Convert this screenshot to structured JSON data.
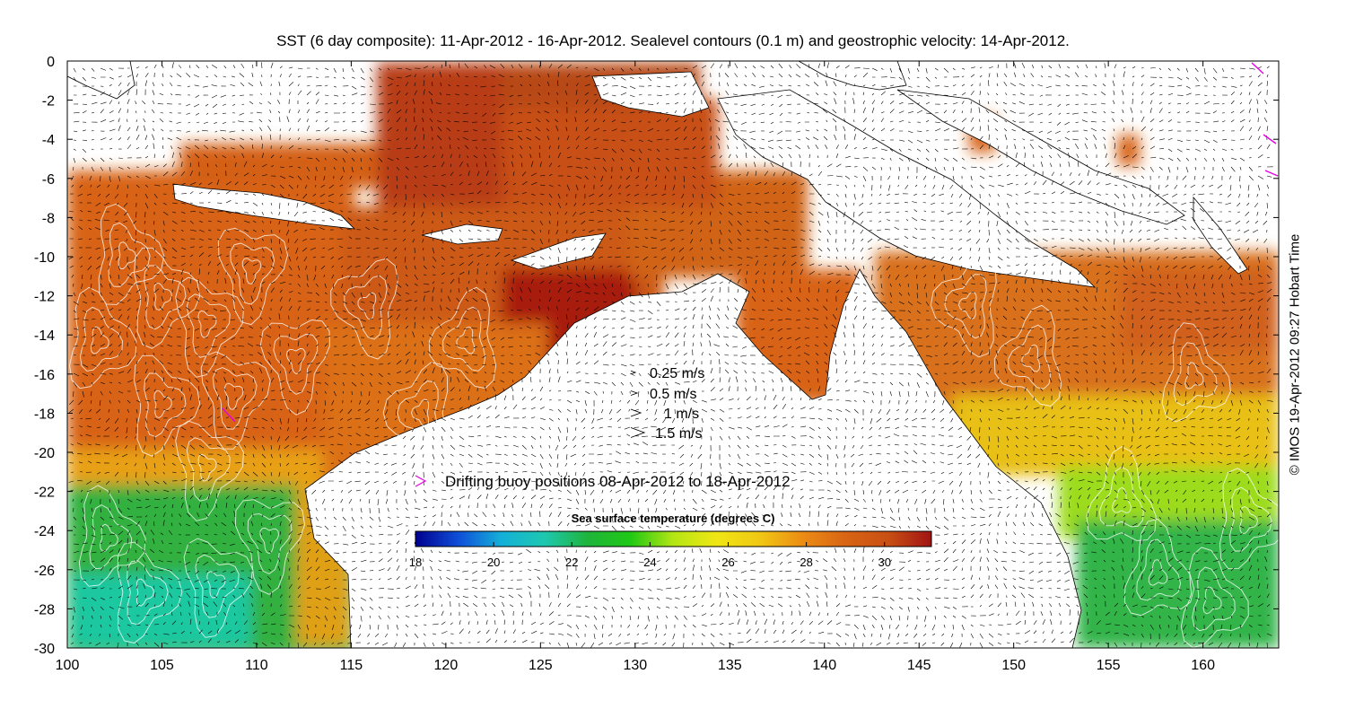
{
  "title": "SST (6 day composite): 11-Apr-2012 - 16-Apr-2012. Sealevel contours (0.1 m) and geostrophic velocity: 14-Apr-2012.",
  "credit": "© IMOS 19-Apr-2012 09:27 Hobart Time",
  "chart_data": {
    "type": "heatmap",
    "x_ticks": [
      "100",
      "105",
      "110",
      "115",
      "120",
      "125",
      "130",
      "135",
      "140",
      "145",
      "150",
      "155",
      "160"
    ],
    "y_ticks": [
      "0",
      "-2",
      "-4",
      "-6",
      "-8",
      "-10",
      "-12",
      "-14",
      "-16",
      "-18",
      "-20",
      "-22",
      "-24",
      "-26",
      "-28",
      "-30"
    ],
    "xlim": [
      100,
      164
    ],
    "ylim": [
      -30,
      0
    ],
    "grid": false,
    "colorbar": {
      "label": "Sea surface temperature (degrees C)",
      "ticks": [
        "18",
        "20",
        "22",
        "24",
        "26",
        "28",
        "30"
      ],
      "range": [
        18,
        31.2
      ],
      "colors": [
        "#00008f",
        "#0f4fd8",
        "#14b0d8",
        "#1ec8b0",
        "#1fb43c",
        "#20c814",
        "#b4e614",
        "#f0e614",
        "#f0c814",
        "#ec8c14",
        "#d86414",
        "#c84f14",
        "#a01414"
      ]
    },
    "velocity_legend": [
      {
        "label": "0.25 m/s",
        "speed": 0.25
      },
      {
        "label": "0.5 m/s",
        "speed": 0.5
      },
      {
        "label": "1 m/s",
        "speed": 1
      },
      {
        "label": "1.5 m/s",
        "speed": 1.5
      }
    ],
    "buoy_legend": {
      "label": "Drifting buoy positions 08-Apr-2012 to 18-Apr-2012",
      "color": "#e600e6"
    }
  }
}
